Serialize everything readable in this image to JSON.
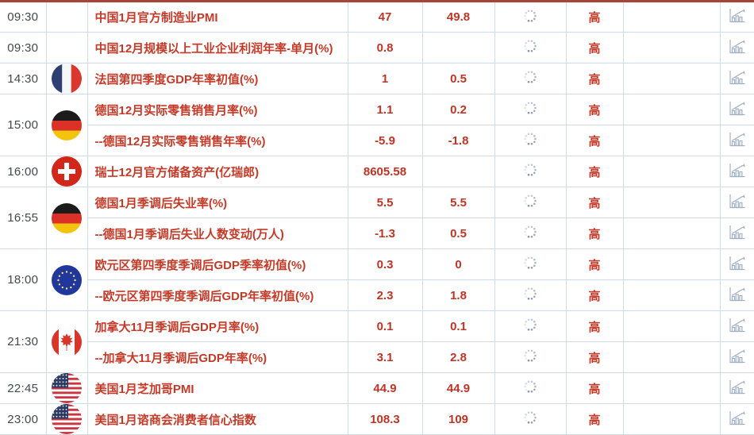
{
  "table": {
    "importance_label": "高",
    "actual_state": "loading",
    "groups": [
      {
        "time": "09:30",
        "flag": "",
        "rows": [
          {
            "event": "中国1月官方制造业PMI",
            "previous": "47",
            "forecast": "49.8",
            "actual": "",
            "importance": "高"
          }
        ]
      },
      {
        "time": "09:30",
        "flag": "",
        "rows": [
          {
            "event": "中国12月规模以上工业企业利润年率-单月(%)",
            "previous": "0.8",
            "forecast": "",
            "actual": "",
            "importance": "高"
          }
        ]
      },
      {
        "time": "14:30",
        "flag": "france",
        "rows": [
          {
            "event": "法国第四季度GDP年率初值(%)",
            "previous": "1",
            "forecast": "0.5",
            "actual": "",
            "importance": "高"
          }
        ]
      },
      {
        "time": "15:00",
        "flag": "germany",
        "rows": [
          {
            "event": "德国12月实际零售销售月率(%)",
            "previous": "1.1",
            "forecast": "0.2",
            "actual": "",
            "importance": "高"
          },
          {
            "event": "--德国12月实际零售销售年率(%)",
            "previous": "-5.9",
            "forecast": "-1.8",
            "actual": "",
            "importance": "高"
          }
        ]
      },
      {
        "time": "16:00",
        "flag": "switzerland",
        "rows": [
          {
            "event": "瑞士12月官方储备资产(亿瑞郎)",
            "previous": "8605.58",
            "forecast": "",
            "actual": "",
            "importance": "高"
          }
        ]
      },
      {
        "time": "16:55",
        "flag": "germany",
        "rows": [
          {
            "event": "德国1月季调后失业率(%)",
            "previous": "5.5",
            "forecast": "5.5",
            "actual": "",
            "importance": "高"
          },
          {
            "event": "--德国1月季调后失业人数变动(万人)",
            "previous": "-1.3",
            "forecast": "0.5",
            "actual": "",
            "importance": "高"
          }
        ]
      },
      {
        "time": "18:00",
        "flag": "eu",
        "rows": [
          {
            "event": "欧元区第四季度季调后GDP季率初值(%)",
            "previous": "0.3",
            "forecast": "0",
            "actual": "",
            "importance": "高"
          },
          {
            "event": "--欧元区第四季度季调后GDP年率初值(%)",
            "previous": "2.3",
            "forecast": "1.8",
            "actual": "",
            "importance": "高"
          }
        ]
      },
      {
        "time": "21:30",
        "flag": "canada",
        "rows": [
          {
            "event": "加拿大11月季调后GDP月率(%)",
            "previous": "0.1",
            "forecast": "0.1",
            "actual": "",
            "importance": "高"
          },
          {
            "event": "--加拿大11月季调后GDP年率(%)",
            "previous": "3.1",
            "forecast": "2.8",
            "actual": "",
            "importance": "高"
          }
        ]
      },
      {
        "time": "22:45",
        "flag": "usa",
        "rows": [
          {
            "event": "美国1月芝加哥PMI",
            "previous": "44.9",
            "forecast": "44.9",
            "actual": "",
            "importance": "高"
          }
        ]
      },
      {
        "time": "23:00",
        "flag": "usa",
        "rows": [
          {
            "event": "美国1月谘商会消费者信心指数",
            "previous": "108.3",
            "forecast": "109",
            "actual": "",
            "importance": "高"
          }
        ]
      }
    ]
  },
  "icons": {
    "actual_pending": "loading-spinner-icon",
    "row_action": "trend-chart-icon",
    "flags": [
      "france",
      "germany",
      "switzerland",
      "eu",
      "canada",
      "usa"
    ]
  },
  "colors": {
    "event_red": "#c43a28",
    "value_red": "#bc3527",
    "importance_red": "#c43a28",
    "time_text": "#44484c",
    "grid_border": "#cfdce8",
    "top_divider": "#a5443b",
    "icon_gray_blue": "#a2b0c4"
  }
}
